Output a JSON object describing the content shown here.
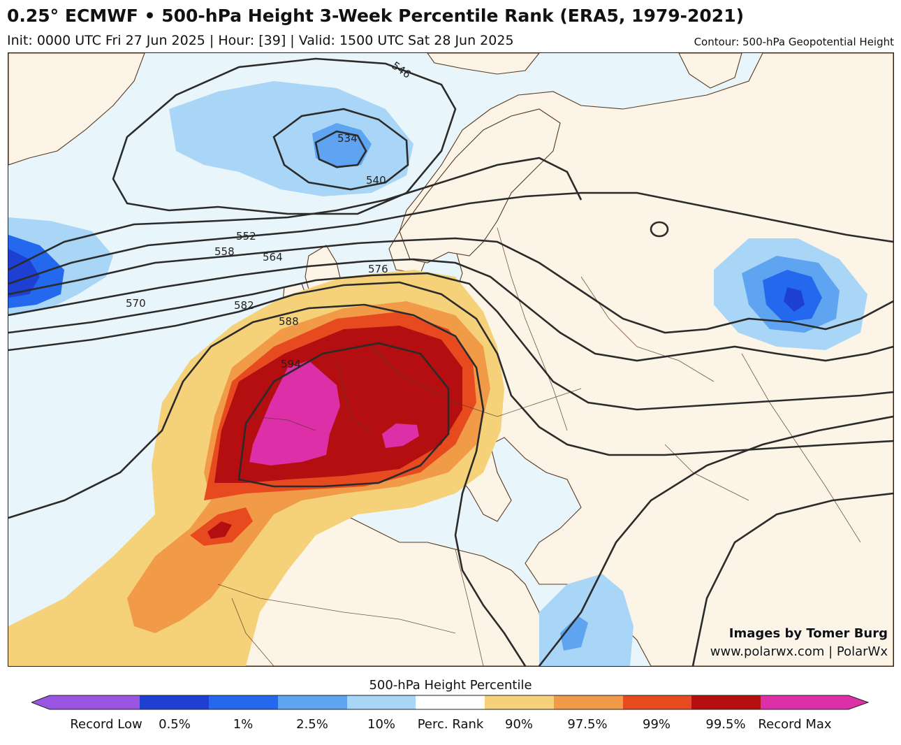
{
  "header": {
    "title": "0.25° ECMWF • 500-hPa Height 3-Week Percentile Rank (ERA5, 1979-2021)",
    "subtitle": "Init: 0000 UTC Fri 27 Jun 2025 | Hour: [39] | Valid: 1500 UTC Sat 28 Jun 2025",
    "contour_note": "Contour: 500-hPa Geopotential Height"
  },
  "map": {
    "contour_labels": [
      "534",
      "540",
      "546",
      "552",
      "558",
      "564",
      "570",
      "576",
      "582",
      "588",
      "594"
    ],
    "credit_line1": "Images by Tomer Burg",
    "credit_line2": "www.polarwx.com | PolarWx"
  },
  "colors": {
    "ocean": "#e8f6fb",
    "land": "#fcf4e6",
    "record_low": "#9a55e0",
    "p0_5": "#1d3fd2",
    "p1": "#2468ee",
    "p2_5": "#5ea4f0",
    "p10": "#a9d6f7",
    "neutral": "#ffffff",
    "p90": "#f5d27a",
    "p97_5": "#f19a48",
    "p99": "#e84a1f",
    "p99_5": "#b50e10",
    "record_max": "#dc2fa8",
    "contour": "#2b2b2b",
    "border": "#5a3a1e"
  },
  "legend": {
    "title": "500-hPa Height Percentile",
    "labels": [
      "Record Low",
      "0.5%",
      "1%",
      "2.5%",
      "10%",
      "Perc. Rank",
      "90%",
      "97.5%",
      "99%",
      "99.5%",
      "Record Max"
    ]
  }
}
